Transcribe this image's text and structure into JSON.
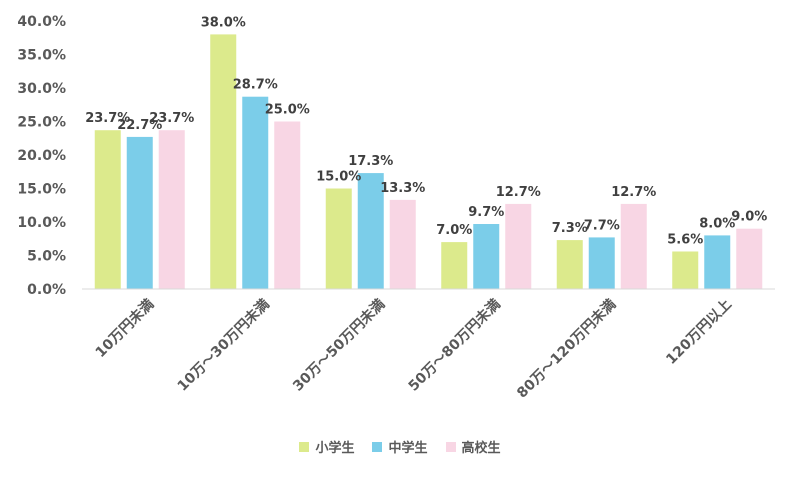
{
  "chart_data": {
    "type": "bar",
    "categories": [
      "10万円未満",
      "10万～30万円未満",
      "30万～50万円未満",
      "50万～80万円未満",
      "80万～120万円未満",
      "120万円以上"
    ],
    "series": [
      {
        "name": "小学生",
        "values": [
          23.7,
          38.0,
          15.0,
          7.0,
          7.3,
          5.6
        ],
        "labels": [
          "23.7%",
          "38.0%",
          "15.0%",
          "7.0%",
          "7.3%",
          "5.6%"
        ],
        "color": "#dcea8c"
      },
      {
        "name": "中学生",
        "values": [
          22.7,
          28.7,
          17.3,
          9.7,
          7.7,
          8.0
        ],
        "labels": [
          "22.7%",
          "28.7%",
          "17.3%",
          "9.7%",
          "7.7%",
          "8.0%"
        ],
        "color": "#7bcde9"
      },
      {
        "name": "高校生",
        "values": [
          23.7,
          25.0,
          13.3,
          12.7,
          12.7,
          9.0
        ],
        "labels": [
          "23.7%",
          "25.0%",
          "13.3%",
          "12.7%",
          "12.7%",
          "9.0%"
        ],
        "color": "#f8d6e4"
      }
    ],
    "yticks": [
      "0.0%",
      "5.0%",
      "10.0%",
      "15.0%",
      "20.0%",
      "25.0%",
      "30.0%",
      "35.0%",
      "40.0%"
    ],
    "ylim": [
      0,
      40
    ],
    "grid": false,
    "legend_position": "bottom"
  }
}
